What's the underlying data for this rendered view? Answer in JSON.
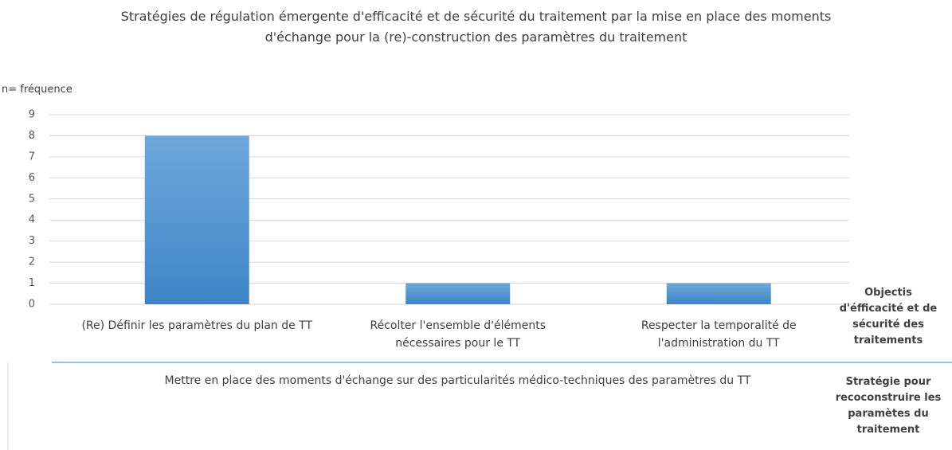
{
  "chart_data": {
    "type": "bar",
    "title": "Stratégies de régulation émergente d'efficacité et de sécurité du traitement par la mise en place des moments d'échange pour la (re)-construction des paramètres du traitement",
    "y_label": "n= fréquence",
    "categories": [
      "(Re) Définir les paramètres du plan de TT",
      "Récolter l'ensemble d'éléments nécessaires pour le TT",
      "Respecter la temporalité de l'administration du TT"
    ],
    "group_label": "Mettre en place des moments d'échange sur des particularités médico-techniques des paramètres du TT",
    "level_labels": [
      "Objectis d'éfficacité et de sécurité des traitements",
      "Stratégie pour recoconstruire les paramètes du traitement"
    ],
    "values": [
      8,
      1,
      1
    ],
    "color": "#5b9bd5",
    "ylim": [
      0,
      9
    ],
    "yticks": [
      0,
      1,
      2,
      3,
      4,
      5,
      6,
      7,
      8,
      9
    ],
    "grid": true
  }
}
